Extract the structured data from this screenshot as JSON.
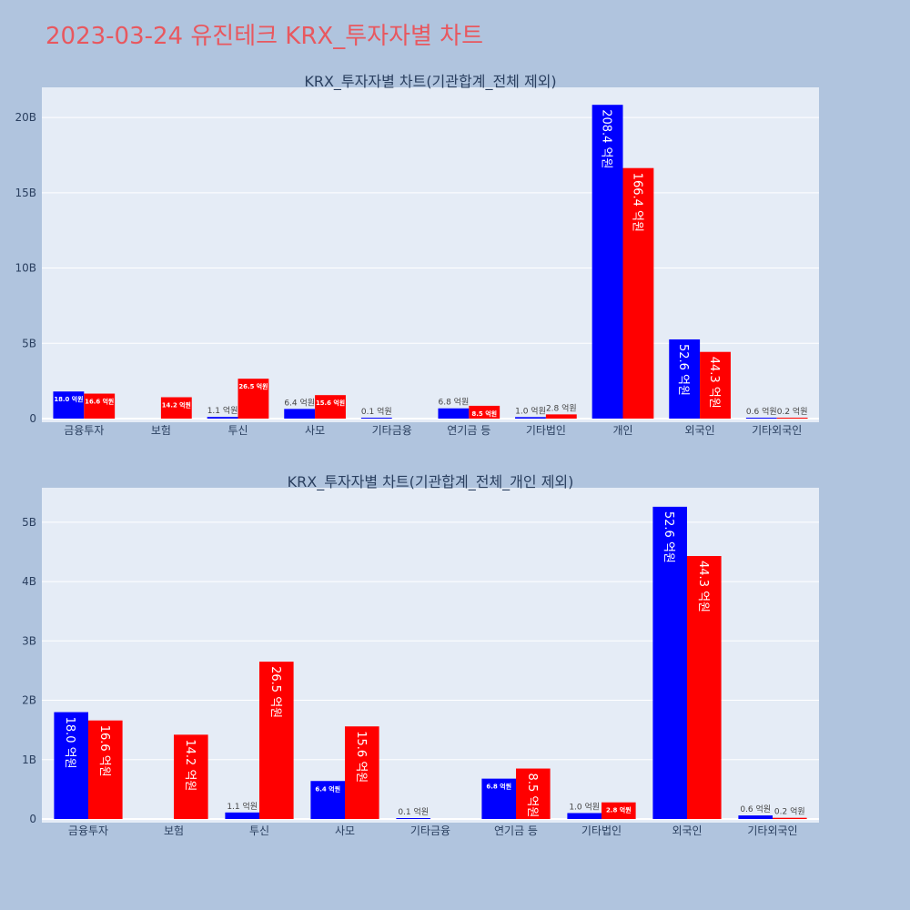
{
  "page_title": "2023-03-24 유진테크 KRX_투자자별 차트",
  "colors": {
    "background": "#b0c4de",
    "plot_bg": "#e5ecf6",
    "grid": "#ffffff",
    "title": "#e8585f",
    "text": "#2a3f5f",
    "outside_label": "#444444",
    "inside_label": "#ffffff"
  },
  "chart_data": [
    {
      "type": "bar",
      "title": "KRX_투자자별 차트(기관합계_전체 제외)",
      "categories": [
        "금융투자",
        "보험",
        "투신",
        "사모",
        "기타금융",
        "연기금 등",
        "기타법인",
        "개인",
        "외국인",
        "기타외국인"
      ],
      "ylim": [
        0,
        22000000000
      ],
      "y_ticks": [
        0,
        5000000000,
        10000000000,
        15000000000,
        20000000000
      ],
      "y_tick_labels": [
        "0",
        "5B",
        "10B",
        "15B",
        "20B"
      ],
      "grid": true,
      "series": [
        {
          "color": "#0000ff",
          "values": [
            1800000000,
            0,
            110000000,
            640000000,
            10000000,
            680000000,
            100000000,
            20840000000,
            5260000000,
            60000000
          ],
          "labels": [
            "18.0 억원",
            "",
            "1.1 억원",
            "6.4 억원",
            "0.1 억원",
            "6.8 억원",
            "1.0 억원",
            "208.4 억원",
            "52.6 억원",
            "0.6 억원"
          ]
        },
        {
          "color": "#ff0000",
          "values": [
            1660000000,
            1420000000,
            2650000000,
            1560000000,
            0,
            850000000,
            280000000,
            16640000000,
            4430000000,
            20000000
          ],
          "labels": [
            "16.6 억원",
            "14.2 억원",
            "26.5 억원",
            "15.6 억원",
            "",
            "8.5 억원",
            "2.8 억원",
            "166.4 억원",
            "44.3 억원",
            "0.2 억원"
          ]
        }
      ]
    },
    {
      "type": "bar",
      "title": "KRX_투자자별 차트(기관합계_전체_개인 제외)",
      "categories": [
        "금융투자",
        "보험",
        "투신",
        "사모",
        "기타금융",
        "연기금 등",
        "기타법인",
        "외국인",
        "기타외국인"
      ],
      "ylim": [
        0,
        5580000000
      ],
      "y_ticks": [
        0,
        1000000000,
        2000000000,
        3000000000,
        4000000000,
        5000000000
      ],
      "y_tick_labels": [
        "0",
        "1B",
        "2B",
        "3B",
        "4B",
        "5B"
      ],
      "grid": true,
      "series": [
        {
          "color": "#0000ff",
          "values": [
            1800000000,
            0,
            110000000,
            640000000,
            10000000,
            680000000,
            100000000,
            5260000000,
            60000000
          ],
          "labels": [
            "18.0 억원",
            "",
            "1.1 억원",
            "6.4 억원",
            "0.1 억원",
            "6.8 억원",
            "1.0 억원",
            "52.6 억원",
            "0.6 억원"
          ]
        },
        {
          "color": "#ff0000",
          "values": [
            1660000000,
            1420000000,
            2650000000,
            1560000000,
            0,
            850000000,
            280000000,
            4430000000,
            20000000
          ],
          "labels": [
            "16.6 억원",
            "14.2 억원",
            "26.5 억원",
            "15.6 억원",
            "",
            "8.5 억원",
            "2.8 억원",
            "44.3 억원",
            "0.2 억원"
          ]
        }
      ]
    }
  ]
}
